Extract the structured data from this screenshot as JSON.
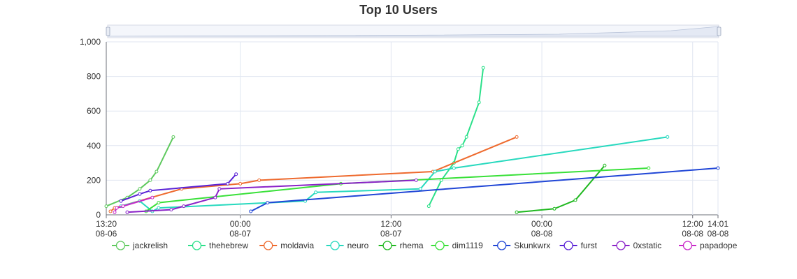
{
  "chart_data": {
    "type": "line",
    "title": "Top 10 Users",
    "xlabel": "",
    "ylabel": "",
    "x_range": [
      "2024-08-06T13:20",
      "2024-08-08T14:01"
    ],
    "ylim": [
      0,
      1000
    ],
    "y_ticks": [
      0,
      200,
      400,
      600,
      800,
      1000
    ],
    "y_tick_labels": [
      "0",
      "200",
      "400",
      "600",
      "800",
      "1,000"
    ],
    "x_ticks": [
      {
        "t": "2024-08-06T13:20",
        "time": "13:20",
        "date": "08-06"
      },
      {
        "t": "2024-08-07T00:00",
        "time": "00:00",
        "date": "08-07"
      },
      {
        "t": "2024-08-07T12:00",
        "time": "12:00",
        "date": "08-07"
      },
      {
        "t": "2024-08-08T00:00",
        "time": "00:00",
        "date": "08-08"
      },
      {
        "t": "2024-08-08T12:00",
        "time": "12:00",
        "date": "08-08"
      },
      {
        "t": "2024-08-08T14:01",
        "time": "14:01",
        "date": "08-08"
      }
    ],
    "grid": true,
    "legend_position": "bottom",
    "has_data_zoom_slider": true,
    "series": [
      {
        "name": "jackrelish",
        "color": "#5ec95e",
        "points": [
          [
            "2024-08-06T13:20",
            50
          ],
          [
            "2024-08-06T15:00",
            100
          ],
          [
            "2024-08-06T16:00",
            150
          ],
          [
            "2024-08-06T16:50",
            200
          ],
          [
            "2024-08-06T17:20",
            250
          ],
          [
            "2024-08-06T18:40",
            450
          ]
        ]
      },
      {
        "name": "thehebrew",
        "color": "#2be08a",
        "points": [
          [
            "2024-08-07T15:00",
            50
          ],
          [
            "2024-08-07T16:00",
            200
          ],
          [
            "2024-08-07T17:00",
            300
          ],
          [
            "2024-08-07T17:20",
            380
          ],
          [
            "2024-08-07T17:40",
            400
          ],
          [
            "2024-08-07T18:00",
            450
          ],
          [
            "2024-08-07T19:00",
            650
          ],
          [
            "2024-08-07T19:20",
            850
          ]
        ]
      },
      {
        "name": "moldavia",
        "color": "#ee6a2e",
        "points": [
          [
            "2024-08-06T13:40",
            20
          ],
          [
            "2024-08-06T14:00",
            40
          ],
          [
            "2024-08-06T19:20",
            150
          ],
          [
            "2024-08-07T00:00",
            180
          ],
          [
            "2024-08-07T01:30",
            200
          ],
          [
            "2024-08-07T15:20",
            250
          ],
          [
            "2024-08-07T22:00",
            450
          ]
        ]
      },
      {
        "name": "neuro",
        "color": "#27d9be",
        "points": [
          [
            "2024-08-06T14:30",
            50
          ],
          [
            "2024-08-06T16:00",
            80
          ],
          [
            "2024-08-06T17:00",
            20
          ],
          [
            "2024-08-06T17:30",
            40
          ],
          [
            "2024-08-07T05:10",
            80
          ],
          [
            "2024-08-07T06:00",
            130
          ],
          [
            "2024-08-07T14:20",
            150
          ],
          [
            "2024-08-07T15:30",
            250
          ],
          [
            "2024-08-07T17:00",
            270
          ],
          [
            "2024-08-08T10:00",
            450
          ]
        ]
      },
      {
        "name": "rhema",
        "color": "#1fb81f",
        "points": [
          [
            "2024-08-07T22:00",
            15
          ],
          [
            "2024-08-08T01:00",
            35
          ],
          [
            "2024-08-08T02:40",
            85
          ],
          [
            "2024-08-08T05:00",
            285
          ]
        ]
      },
      {
        "name": "dim1119",
        "color": "#39e039",
        "points": [
          [
            "2024-08-06T16:30",
            20
          ],
          [
            "2024-08-06T17:30",
            70
          ],
          [
            "2024-08-07T08:00",
            180
          ],
          [
            "2024-08-08T08:30",
            270
          ]
        ]
      },
      {
        "name": "Skunkwrx",
        "color": "#2046d6",
        "points": [
          [
            "2024-08-07T00:50",
            20
          ],
          [
            "2024-08-07T02:10",
            70
          ],
          [
            "2024-08-08T14:01",
            270
          ]
        ]
      },
      {
        "name": "furst",
        "color": "#5a22d6",
        "points": [
          [
            "2024-08-06T14:30",
            80
          ],
          [
            "2024-08-06T16:00",
            120
          ],
          [
            "2024-08-06T16:50",
            140
          ],
          [
            "2024-08-06T23:00",
            180
          ],
          [
            "2024-08-06T23:40",
            235
          ]
        ]
      },
      {
        "name": "0xstatic",
        "color": "#8a22c8",
        "points": [
          [
            "2024-08-06T15:00",
            15
          ],
          [
            "2024-08-06T18:30",
            30
          ],
          [
            "2024-08-06T19:30",
            50
          ],
          [
            "2024-08-06T22:00",
            100
          ],
          [
            "2024-08-06T22:20",
            150
          ],
          [
            "2024-08-07T14:00",
            200
          ]
        ]
      },
      {
        "name": "papadope",
        "color": "#c828c8",
        "points": [
          [
            "2024-08-06T14:00",
            15
          ],
          [
            "2024-08-06T14:10",
            40
          ],
          [
            "2024-08-06T14:40",
            50
          ],
          [
            "2024-08-06T17:00",
            100
          ]
        ]
      }
    ]
  }
}
